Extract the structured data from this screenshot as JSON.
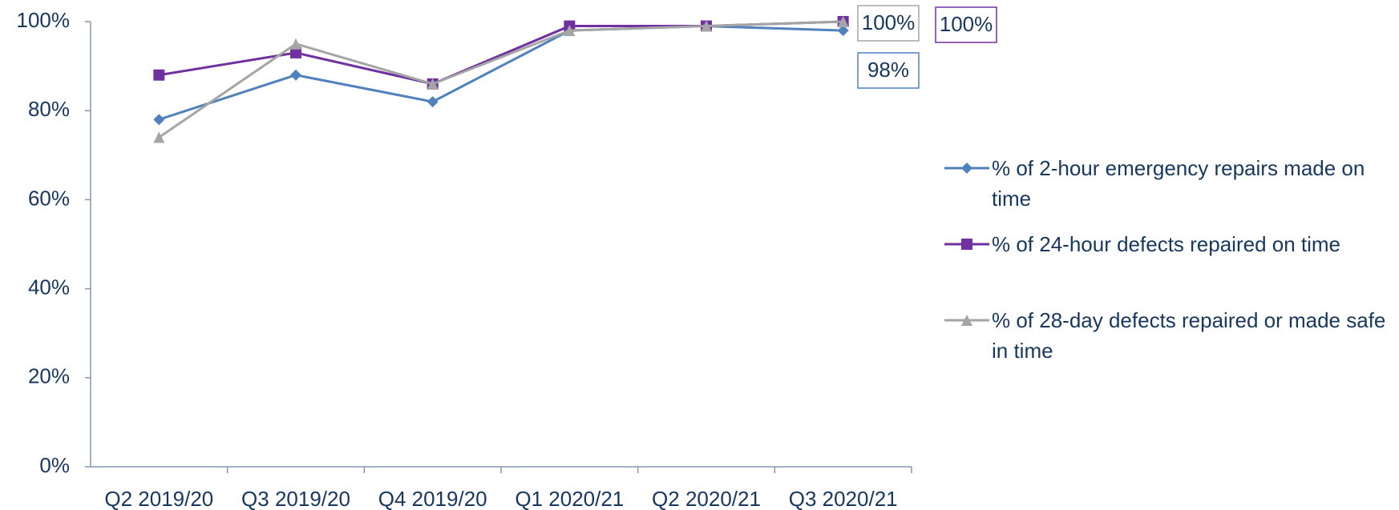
{
  "chart_data": {
    "type": "line",
    "categories": [
      "Q2 2019/20",
      "Q3 2019/20",
      "Q4 2019/20",
      "Q1 2020/21",
      "Q2 2020/21",
      "Q3 2020/21"
    ],
    "series": [
      {
        "name": "% of 2-hour emergency repairs made on time",
        "color": "#4f81bd",
        "marker": "diamond",
        "values": [
          78,
          88,
          82,
          98,
          99,
          98
        ],
        "value_labels": [
          null,
          null,
          null,
          null,
          null,
          "98%"
        ]
      },
      {
        "name": "% of 24-hour defects repaired on time",
        "color": "#7030a0",
        "marker": "square",
        "values": [
          88,
          93,
          86,
          99,
          99,
          100
        ],
        "value_labels": [
          null,
          null,
          null,
          null,
          null,
          "100%"
        ]
      },
      {
        "name": "% of 28-day defects repaired or made safe in time",
        "color": "#a5a5a5",
        "marker": "triangle",
        "values": [
          74,
          95,
          86,
          98,
          99,
          100
        ],
        "value_labels": [
          null,
          null,
          null,
          null,
          null,
          "100%"
        ]
      }
    ],
    "ylim": [
      0,
      100
    ],
    "yticks": [
      {
        "value": 0,
        "label": "0%"
      },
      {
        "value": 20,
        "label": "20%"
      },
      {
        "value": 40,
        "label": "40%"
      },
      {
        "value": 60,
        "label": "60%"
      },
      {
        "value": 80,
        "label": "80%"
      },
      {
        "value": 100,
        "label": "100%"
      }
    ],
    "grid": false,
    "legend": "right"
  }
}
